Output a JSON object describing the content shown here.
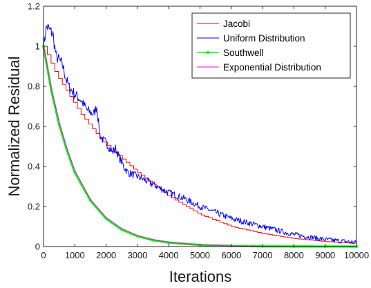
{
  "chart_data": {
    "type": "line",
    "title": "",
    "xlabel": "Iterations",
    "ylabel": "Normalized Residual",
    "xlim": [
      0,
      10000
    ],
    "ylim": [
      0,
      1.2
    ],
    "xticks": [
      0,
      1000,
      2000,
      3000,
      4000,
      5000,
      6000,
      7000,
      8000,
      9000,
      10000
    ],
    "yticks": [
      0,
      0.2,
      0.4,
      0.6,
      0.8,
      1,
      1.2
    ],
    "xtick_labels": [
      "0",
      "1000",
      "2000",
      "3000",
      "4000",
      "5000",
      "6000",
      "7000",
      "8000",
      "9000",
      "10000"
    ],
    "ytick_labels": [
      "0",
      "0.2",
      "0.4",
      "0.6",
      "0.8",
      "1",
      "1.2"
    ],
    "grid": false,
    "legend_position": "top-right",
    "series": [
      {
        "name": "Jacobi",
        "color": "#ff0000",
        "style": "staircase",
        "x": [
          0,
          200,
          400,
          600,
          800,
          1000,
          1200,
          1400,
          1600,
          1800,
          2000,
          2500,
          3000,
          3500,
          4000,
          5000,
          6000,
          7000,
          8000,
          9000,
          10000
        ],
        "y": [
          1.0,
          0.93,
          0.86,
          0.81,
          0.76,
          0.71,
          0.66,
          0.62,
          0.58,
          0.54,
          0.51,
          0.44,
          0.37,
          0.31,
          0.25,
          0.16,
          0.1,
          0.065,
          0.04,
          0.025,
          0.015
        ]
      },
      {
        "name": "Uniform Distribution",
        "color": "#0000ff",
        "style": "noisy",
        "x": [
          0,
          100,
          200,
          300,
          400,
          600,
          700,
          800,
          1000,
          1200,
          1400,
          1600,
          1700,
          1800,
          1900,
          2000,
          2200,
          2300,
          2400,
          2600,
          2700,
          3000,
          3500,
          4000,
          4500,
          5000,
          5500,
          6000,
          7000,
          8000,
          9000,
          10000
        ],
        "y": [
          1.0,
          1.1,
          1.08,
          1.06,
          0.95,
          0.91,
          0.85,
          0.8,
          0.76,
          0.73,
          0.68,
          0.66,
          0.7,
          0.56,
          0.53,
          0.52,
          0.47,
          0.49,
          0.45,
          0.39,
          0.37,
          0.35,
          0.31,
          0.27,
          0.24,
          0.2,
          0.17,
          0.14,
          0.1,
          0.06,
          0.035,
          0.02
        ]
      },
      {
        "name": "Southwell",
        "color": "#00ff00",
        "style": "line-with-markers",
        "x": [
          0,
          250,
          500,
          750,
          1000,
          1500,
          2000,
          2500,
          3000,
          3500,
          4000,
          5000,
          6000,
          7000,
          8000,
          9000,
          10000
        ],
        "y": [
          1.0,
          0.78,
          0.61,
          0.48,
          0.37,
          0.23,
          0.14,
          0.085,
          0.052,
          0.032,
          0.02,
          0.008,
          0.003,
          0.001,
          0.0005,
          0.0002,
          0.0001
        ]
      },
      {
        "name": "Exponential Distribution",
        "color": "#ff00ff",
        "style": "line",
        "x": [
          0,
          250,
          500,
          750,
          1000,
          1500,
          2000,
          2500,
          3000,
          3500,
          4000,
          5000,
          6000,
          7000,
          8000,
          9000,
          10000
        ],
        "y": [
          1.0,
          0.79,
          0.62,
          0.49,
          0.38,
          0.235,
          0.145,
          0.09,
          0.055,
          0.034,
          0.021,
          0.008,
          0.003,
          0.001,
          0.0005,
          0.0002,
          0.0001
        ]
      }
    ]
  }
}
